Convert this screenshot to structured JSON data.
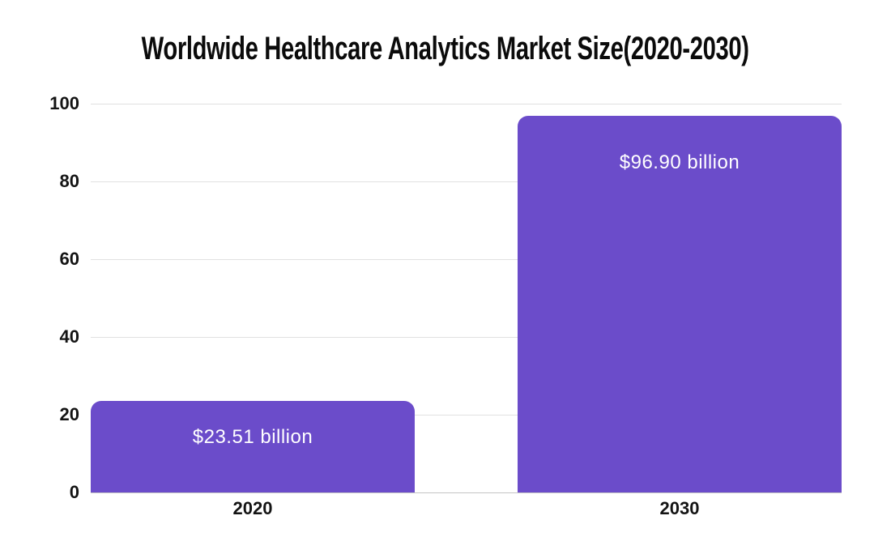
{
  "chart_data": {
    "type": "bar",
    "title": "Worldwide Healthcare Analytics Market Size(2020-2030)",
    "categories": [
      "2020",
      "2030"
    ],
    "values": [
      23.51,
      96.9
    ],
    "value_labels": [
      "$23.51 billion",
      "$96.90 billion"
    ],
    "yticks": [
      100,
      80,
      60,
      40,
      20,
      0
    ],
    "ylim": [
      0,
      100
    ],
    "xlabel": "",
    "ylabel": "",
    "grid": true,
    "legend": false,
    "colors": {
      "bar": "#6B4CCA",
      "bar_label_text": "#FFFFFF",
      "gridline": "#E1E1E1",
      "baseline": "#C4C4C4",
      "axis_text": "#141414",
      "title_text": "#0B0B0B",
      "background": "#FFFFFF"
    }
  }
}
